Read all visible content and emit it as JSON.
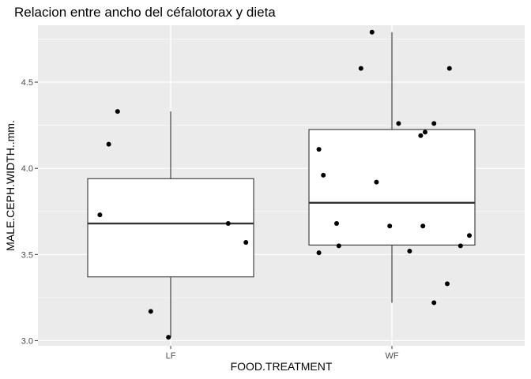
{
  "chart_data": {
    "type": "boxplot",
    "title": "Relacion entre ancho del céfalotorax y dieta",
    "xlabel": "FOOD.TREATMENT",
    "ylabel": "MALE.CEPH.WIDTH..mm.",
    "categories": [
      "LF",
      "WF"
    ],
    "ylim": [
      2.97,
      4.83
    ],
    "yticks": [
      3.0,
      3.5,
      4.0,
      4.5
    ],
    "ytick_labels": [
      "3.0",
      "3.5",
      "4.0",
      "4.5"
    ],
    "grid": true,
    "legend": "none",
    "colors": {
      "panel": "#ebebeb",
      "grid": "#ffffff",
      "box_fill": "#ffffff",
      "box_line": "#333333",
      "point": "#000000"
    },
    "boxes": [
      {
        "category": "LF",
        "whisker_low": 3.02,
        "q1": 3.37,
        "median": 3.68,
        "q3": 3.94,
        "whisker_high": 4.33
      },
      {
        "category": "WF",
        "whisker_low": 3.22,
        "q1": 3.555,
        "median": 3.8,
        "q3": 4.225,
        "whisker_high": 4.79
      }
    ],
    "points": [
      {
        "category": "LF",
        "jitter": -0.32,
        "y": 3.73
      },
      {
        "category": "LF",
        "jitter": -0.24,
        "y": 4.33
      },
      {
        "category": "LF",
        "jitter": -0.28,
        "y": 4.14
      },
      {
        "category": "LF",
        "jitter": -0.09,
        "y": 3.17
      },
      {
        "category": "LF",
        "jitter": -0.01,
        "y": 3.02
      },
      {
        "category": "LF",
        "jitter": 0.26,
        "y": 3.68
      },
      {
        "category": "LF",
        "jitter": 0.34,
        "y": 3.57
      },
      {
        "category": "WF",
        "jitter": -0.33,
        "y": 4.11
      },
      {
        "category": "WF",
        "jitter": -0.31,
        "y": 3.96
      },
      {
        "category": "WF",
        "jitter": -0.33,
        "y": 3.51
      },
      {
        "category": "WF",
        "jitter": -0.25,
        "y": 3.68
      },
      {
        "category": "WF",
        "jitter": -0.24,
        "y": 3.55
      },
      {
        "category": "WF",
        "jitter": -0.14,
        "y": 4.58
      },
      {
        "category": "WF",
        "jitter": -0.09,
        "y": 4.79
      },
      {
        "category": "WF",
        "jitter": -0.07,
        "y": 3.92
      },
      {
        "category": "WF",
        "jitter": -0.01,
        "y": 3.665
      },
      {
        "category": "WF",
        "jitter": 0.03,
        "y": 4.26
      },
      {
        "category": "WF",
        "jitter": 0.08,
        "y": 3.52
      },
      {
        "category": "WF",
        "jitter": 0.13,
        "y": 4.19
      },
      {
        "category": "WF",
        "jitter": 0.14,
        "y": 3.665
      },
      {
        "category": "WF",
        "jitter": 0.15,
        "y": 4.21
      },
      {
        "category": "WF",
        "jitter": 0.19,
        "y": 4.26
      },
      {
        "category": "WF",
        "jitter": 0.19,
        "y": 3.22
      },
      {
        "category": "WF",
        "jitter": 0.25,
        "y": 3.33
      },
      {
        "category": "WF",
        "jitter": 0.26,
        "y": 4.58
      },
      {
        "category": "WF",
        "jitter": 0.31,
        "y": 3.55
      },
      {
        "category": "WF",
        "jitter": 0.35,
        "y": 3.61
      }
    ]
  }
}
